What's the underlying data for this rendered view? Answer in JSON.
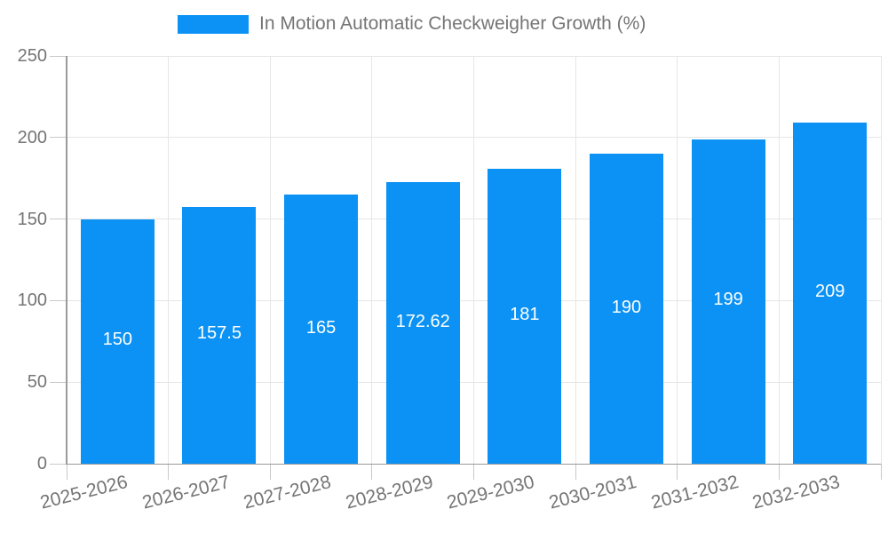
{
  "colors": {
    "bar": "#0b92f4",
    "grid": "#e6e6e6",
    "axis": "#9a9a9a",
    "tick": "#c9c9c9",
    "text": "#757575",
    "bar_label_text": "#ffffff",
    "background": "#ffffff"
  },
  "chart_data": {
    "type": "bar",
    "title": "",
    "legend": [
      "In Motion Automatic Checkweigher Growth (%)"
    ],
    "legend_position": "top",
    "categories": [
      "2025-2026",
      "2026-2027",
      "2027-2028",
      "2028-2029",
      "2029-2030",
      "2030-2031",
      "2031-2032",
      "2032-2033"
    ],
    "series": [
      {
        "name": "In Motion Automatic Checkweigher Growth (%)",
        "values": [
          150,
          157.5,
          165,
          172.62,
          181,
          190,
          199,
          209
        ]
      }
    ],
    "bar_value_labels": [
      "150",
      "157.5",
      "165",
      "172.62",
      "181",
      "190",
      "199",
      "209"
    ],
    "xlabel": "",
    "ylabel": "",
    "ylim": [
      0,
      250
    ],
    "yticks": [
      0,
      50,
      100,
      150,
      200,
      250
    ],
    "grid": true,
    "x_tick_rotation_deg": -14
  }
}
